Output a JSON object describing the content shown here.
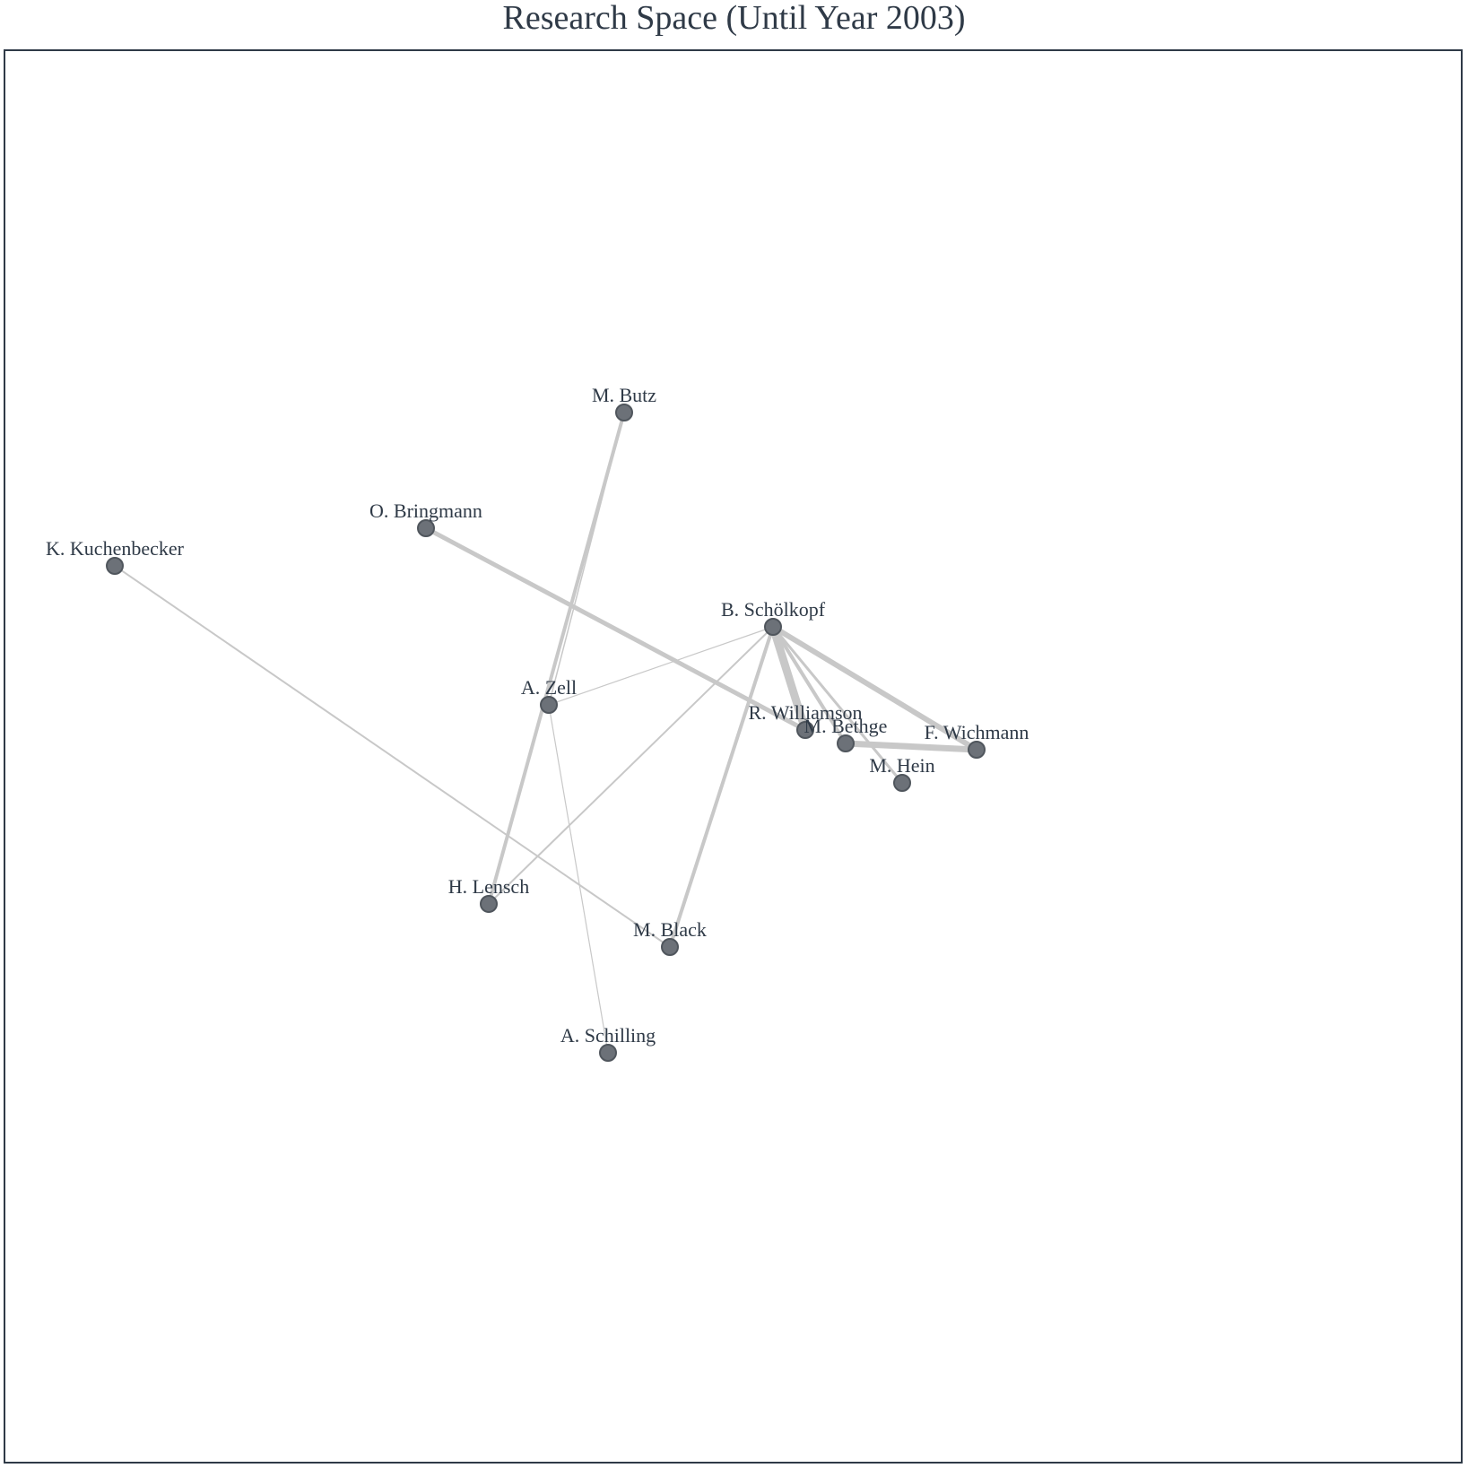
{
  "title": "Research Space (Until Year 2003)",
  "colors": {
    "node": "#6c7178",
    "edge": "#c8c8c8",
    "text": "#2f3a47"
  },
  "nodes": [
    {
      "id": "butz",
      "label": "M. Butz"
    },
    {
      "id": "bringmann",
      "label": "O. Bringmann"
    },
    {
      "id": "kuchenbecker",
      "label": "K. Kuchenbecker"
    },
    {
      "id": "schoelkopf",
      "label": "B. Schölkopf"
    },
    {
      "id": "zell",
      "label": "A. Zell"
    },
    {
      "id": "williamson",
      "label": "R. Williamson"
    },
    {
      "id": "bethge",
      "label": "M. Bethge"
    },
    {
      "id": "wichmann",
      "label": "F. Wichmann"
    },
    {
      "id": "hein",
      "label": "M. Hein"
    },
    {
      "id": "lensch",
      "label": "H. Lensch"
    },
    {
      "id": "black",
      "label": "M. Black"
    },
    {
      "id": "schilling",
      "label": "A. Schilling"
    }
  ],
  "edges": [
    {
      "source": "butz",
      "target": "lensch",
      "weight": 4
    },
    {
      "source": "butz",
      "target": "zell",
      "weight": 1.5
    },
    {
      "source": "bringmann",
      "target": "williamson",
      "weight": 5
    },
    {
      "source": "kuchenbecker",
      "target": "black",
      "weight": 2
    },
    {
      "source": "schoelkopf",
      "target": "zell",
      "weight": 1.2
    },
    {
      "source": "schoelkopf",
      "target": "lensch",
      "weight": 2
    },
    {
      "source": "schoelkopf",
      "target": "black",
      "weight": 4
    },
    {
      "source": "schoelkopf",
      "target": "williamson",
      "weight": 9
    },
    {
      "source": "schoelkopf",
      "target": "bethge",
      "weight": 4
    },
    {
      "source": "schoelkopf",
      "target": "hein",
      "weight": 3
    },
    {
      "source": "schoelkopf",
      "target": "wichmann",
      "weight": 6
    },
    {
      "source": "bethge",
      "target": "wichmann",
      "weight": 7
    },
    {
      "source": "zell",
      "target": "schilling",
      "weight": 1.2
    }
  ]
}
